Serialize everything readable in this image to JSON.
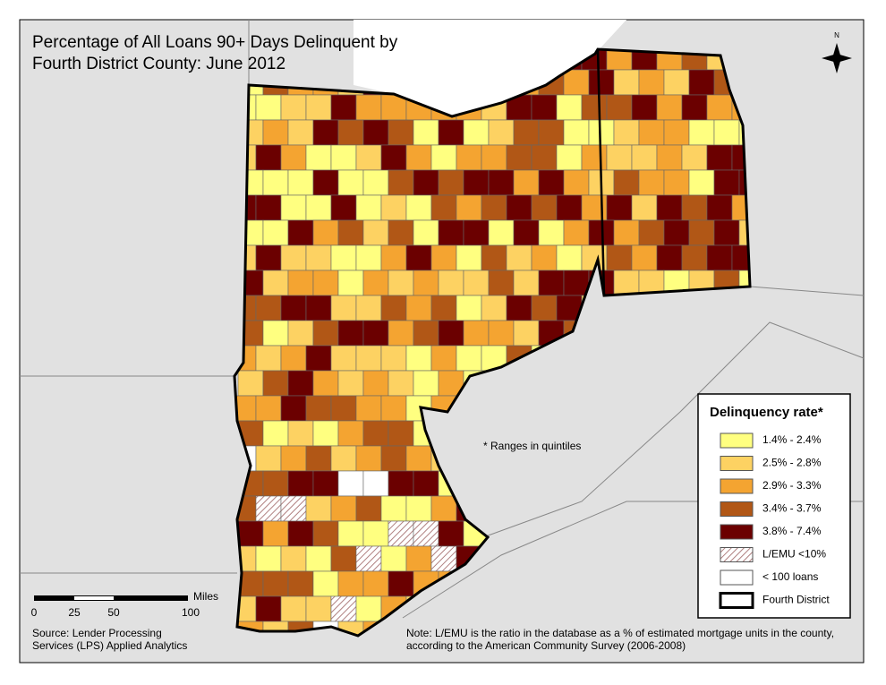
{
  "title": [
    "Percentage of All Loans 90+ Days Delinquent by",
    "Fourth District County: June 2012"
  ],
  "compass": "N",
  "legend": {
    "title": "Delinquency rate*",
    "items": [
      {
        "label": "1.4% - 2.4%",
        "color": "#ffff80"
      },
      {
        "label": "2.5% - 2.8%",
        "color": "#fdd262"
      },
      {
        "label": "2.9% - 3.3%",
        "color": "#f4a431"
      },
      {
        "label": "3.4% - 3.7%",
        "color": "#b15716"
      },
      {
        "label": "3.8% - 7.4%",
        "color": "#6b0000"
      },
      {
        "label": "L/EMU <10%"
      },
      {
        "label": "< 100 loans"
      },
      {
        "label": "Fourth District"
      }
    ]
  },
  "quintile_note": "* Ranges in quintiles",
  "scale": {
    "labels": [
      "0",
      "25",
      "50",
      "100"
    ],
    "unit": "Miles"
  },
  "source": [
    "Source: Lender Processing",
    "Services (LPS) Applied Analytics"
  ],
  "note": [
    "Note: L/EMU is the ratio in the database as a % of estimated mortgage units in the county,",
    "according to the American Community Survey (2006-2008)"
  ]
}
